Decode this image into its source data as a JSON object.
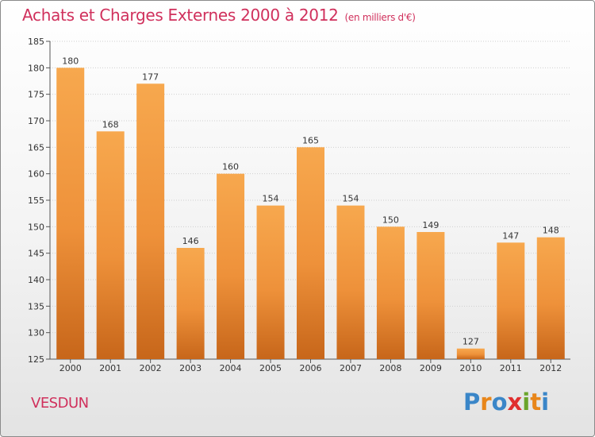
{
  "title": "Achats et Charges Externes 2000 à 2012",
  "unit": "(en milliers d'€)",
  "commune": "VESDUN",
  "logo": {
    "text": "Proxiti",
    "colors": [
      "#3a86c8",
      "#e8861a",
      "#3a86c8",
      "#e02e2e",
      "#6aa42a",
      "#e8861a",
      "#3a86c8"
    ]
  },
  "colors": {
    "bar_light": "#f7a84e",
    "bar_dark": "#c7661a",
    "title": "#d0305c"
  },
  "chart_data": {
    "type": "bar",
    "categories": [
      "2000",
      "2001",
      "2002",
      "2003",
      "2004",
      "2005",
      "2006",
      "2007",
      "2008",
      "2009",
      "2010",
      "2011",
      "2012"
    ],
    "values": [
      180,
      168,
      177,
      146,
      160,
      154,
      165,
      154,
      150,
      149,
      127,
      147,
      148
    ],
    "title": "Achats et Charges Externes 2000 à 2012",
    "ylim": [
      125,
      185
    ],
    "yticks": [
      125,
      130,
      135,
      140,
      145,
      150,
      155,
      160,
      165,
      170,
      175,
      180,
      185
    ],
    "grid": "horizontal"
  }
}
